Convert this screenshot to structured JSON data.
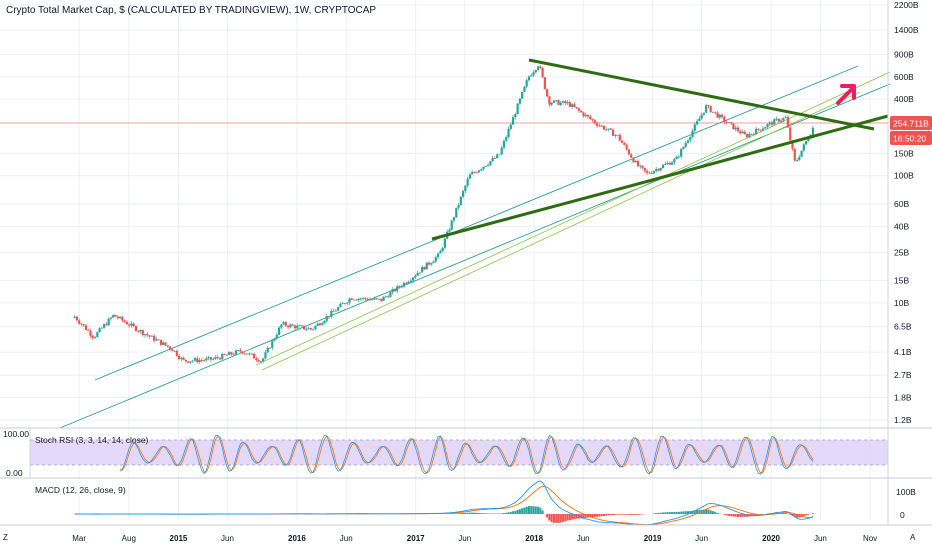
{
  "header": {
    "title": "Crypto Total Market Cap, $ (CALCULATED BY TRADINGVIEW), 1W, CRYPTOCAP"
  },
  "price_badge": {
    "price": "254.711B",
    "countdown": "16:50:20",
    "price_color": "#ef5350",
    "countdown_color": "#ef5350"
  },
  "stoch_panel": {
    "label": "Stoch RSI (3, 3, 14, 14, close)",
    "upper": "100.00",
    "lower": "0.00",
    "band_color": "#c9b7f6",
    "k_color": "#2196f3",
    "d_color": "#ff6d00"
  },
  "macd_panel": {
    "label": "MACD (12, 26, close, 9)",
    "top_tick": "100B",
    "zero_tick": "0",
    "macd_color": "#2196f3",
    "signal_color": "#ff6d00",
    "hist_pos_color": "#26a69a",
    "hist_neg_color": "#ef5350"
  },
  "footer": {
    "left_marker": "Z",
    "right_marker": "A"
  },
  "colors": {
    "candle_up": "#26a69a",
    "candle_down": "#ef5350",
    "triangle": "#2e6b12",
    "channel": "#29a18a",
    "inner_channel": "#8bc34a",
    "arrow": "#e91e63",
    "grid": "#e9ecf1"
  },
  "chart_data": {
    "type": "candlestick",
    "title": "Crypto Total Market Cap, $ (CALCULATED BY TRADINGVIEW), 1W, CRYPTOCAP",
    "y_scale": "log",
    "y_ticks": [
      "2200B",
      "1400B",
      "900B",
      "600B",
      "400B",
      "150B",
      "100B",
      "60B",
      "40B",
      "25B",
      "15B",
      "10B",
      "6.5B",
      "4.1B",
      "2.7B",
      "1.8B",
      "1.2B"
    ],
    "x_ticks": [
      "Mar",
      "Aug",
      "2015",
      "Jun",
      "2016",
      "Jun",
      "2017",
      "Jun",
      "2018",
      "Jun",
      "2019",
      "Jun",
      "2020",
      "Jun",
      "Nov"
    ],
    "current_price": "254.711B",
    "approx_path_billions": [
      {
        "x": "2014-02",
        "y": 7.8
      },
      {
        "x": "2014-04",
        "y": 5.4
      },
      {
        "x": "2014-06",
        "y": 8.0
      },
      {
        "x": "2014-09",
        "y": 5.8
      },
      {
        "x": "2014-12",
        "y": 4.3
      },
      {
        "x": "2015-01",
        "y": 3.5
      },
      {
        "x": "2015-04",
        "y": 3.6
      },
      {
        "x": "2015-07",
        "y": 4.2
      },
      {
        "x": "2015-09",
        "y": 3.5
      },
      {
        "x": "2015-11",
        "y": 6.8
      },
      {
        "x": "2016-02",
        "y": 6.2
      },
      {
        "x": "2016-06",
        "y": 11.0
      },
      {
        "x": "2016-09",
        "y": 10.5
      },
      {
        "x": "2016-12",
        "y": 15.5
      },
      {
        "x": "2017-03",
        "y": 24
      },
      {
        "x": "2017-06",
        "y": 100
      },
      {
        "x": "2017-09",
        "y": 145
      },
      {
        "x": "2017-12",
        "y": 600
      },
      {
        "x": "2018-01",
        "y": 760
      },
      {
        "x": "2018-02",
        "y": 380
      },
      {
        "x": "2018-04",
        "y": 370
      },
      {
        "x": "2018-07",
        "y": 255
      },
      {
        "x": "2018-09",
        "y": 205
      },
      {
        "x": "2018-11",
        "y": 120
      },
      {
        "x": "2018-12",
        "y": 104
      },
      {
        "x": "2019-03",
        "y": 135
      },
      {
        "x": "2019-06",
        "y": 350
      },
      {
        "x": "2019-08",
        "y": 265
      },
      {
        "x": "2019-10",
        "y": 205
      },
      {
        "x": "2020-01",
        "y": 270
      },
      {
        "x": "2020-02",
        "y": 285
      },
      {
        "x": "2020-03",
        "y": 125
      },
      {
        "x": "2020-05",
        "y": 255
      }
    ],
    "annotations": [
      {
        "type": "descending_trendline",
        "from": {
          "x": "2018-01",
          "y": 780
        },
        "to": {
          "x": "2020-07",
          "y": 250
        }
      },
      {
        "type": "ascending_trendline",
        "from": {
          "x": "2017-03",
          "y": 35
        },
        "to": {
          "x": "2020-09",
          "y": 270
        }
      },
      {
        "type": "ascending_channel"
      },
      {
        "type": "up_arrow"
      }
    ],
    "indicators": [
      {
        "name": "Stoch RSI (3, 3, 14, 14, close)",
        "range": [
          0,
          100
        ]
      },
      {
        "name": "MACD (12, 26, close, 9)",
        "ticks": [
          "100B",
          "0"
        ]
      }
    ]
  }
}
